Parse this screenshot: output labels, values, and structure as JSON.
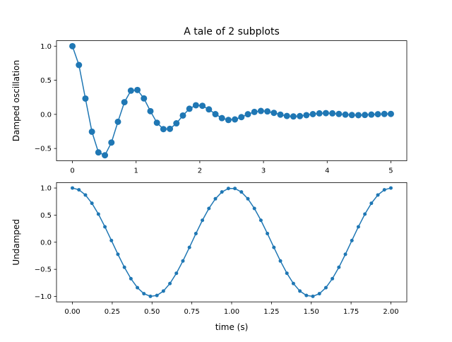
{
  "chart_data": [
    {
      "type": "line",
      "title": "A tale of 2 subplots",
      "xlabel": "",
      "ylabel": "Damped oscillation",
      "formula": "cos(2*pi*x) * exp(-x)",
      "x_range": [
        0,
        5
      ],
      "num_points": 50,
      "marker": "o",
      "xlim": [
        -0.25,
        5.25
      ],
      "ylim": [
        -0.68,
        1.08
      ],
      "xticks": [
        0,
        1,
        2,
        3,
        4,
        5
      ],
      "xtick_labels": [
        "0",
        "1",
        "2",
        "3",
        "4",
        "5"
      ],
      "yticks": [
        -0.5,
        0.0,
        0.5,
        1.0
      ],
      "ytick_labels": [
        "−0.5",
        "0.0",
        "0.5",
        "1.0"
      ],
      "color": "#1f77b4",
      "grid": false,
      "legend": null
    },
    {
      "type": "line",
      "title": "",
      "xlabel": "time (s)",
      "ylabel": "Undamped",
      "formula": "cos(2*pi*x)",
      "x_range": [
        0,
        2
      ],
      "num_points": 50,
      "marker": ".",
      "xlim": [
        -0.1,
        2.1
      ],
      "ylim": [
        -1.1,
        1.1
      ],
      "xticks": [
        0,
        0.25,
        0.5,
        0.75,
        1.0,
        1.25,
        1.5,
        1.75,
        2.0
      ],
      "xtick_labels": [
        "0.00",
        "0.25",
        "0.50",
        "0.75",
        "1.00",
        "1.25",
        "1.50",
        "1.75",
        "2.00"
      ],
      "yticks": [
        -1.0,
        -0.5,
        0.0,
        0.5,
        1.0
      ],
      "ytick_labels": [
        "−1.0",
        "−0.5",
        "0.0",
        "0.5",
        "1.0"
      ],
      "color": "#1f77b4",
      "grid": false,
      "legend": null
    }
  ]
}
